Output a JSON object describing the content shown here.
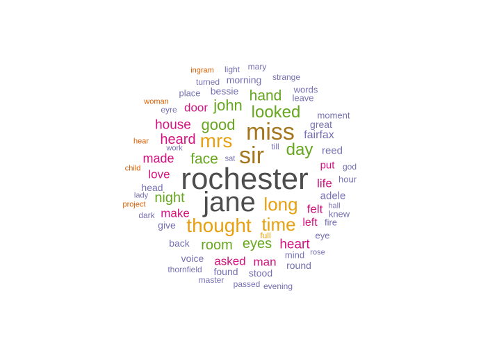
{
  "palette": {
    "gray": "#4d4d4d",
    "brown": "#a6761d",
    "gold": "#e6a011",
    "green": "#66a61e",
    "magenta": "#d4117f",
    "purple": "#7570b3",
    "orange": "#d95f02"
  },
  "words": [
    {
      "text": "rochester",
      "color": "gray"
    },
    {
      "text": "jane",
      "color": "gray"
    },
    {
      "text": "miss",
      "color": "brown"
    },
    {
      "text": "sir",
      "color": "brown"
    },
    {
      "text": "thought",
      "color": "gold"
    },
    {
      "text": "mrs",
      "color": "gold"
    },
    {
      "text": "long",
      "color": "gold"
    },
    {
      "text": "time",
      "color": "gold"
    },
    {
      "text": "looked",
      "color": "green"
    },
    {
      "text": "day",
      "color": "green"
    },
    {
      "text": "good",
      "color": "green"
    },
    {
      "text": "john",
      "color": "green"
    },
    {
      "text": "hand",
      "color": "green"
    },
    {
      "text": "face",
      "color": "green"
    },
    {
      "text": "night",
      "color": "green"
    },
    {
      "text": "room",
      "color": "green"
    },
    {
      "text": "eyes",
      "color": "green"
    },
    {
      "text": "heard",
      "color": "magenta"
    },
    {
      "text": "house",
      "color": "magenta"
    },
    {
      "text": "door",
      "color": "magenta"
    },
    {
      "text": "made",
      "color": "magenta"
    },
    {
      "text": "love",
      "color": "magenta"
    },
    {
      "text": "make",
      "color": "magenta"
    },
    {
      "text": "heart",
      "color": "magenta"
    },
    {
      "text": "asked",
      "color": "magenta"
    },
    {
      "text": "man",
      "color": "magenta"
    },
    {
      "text": "felt",
      "color": "magenta"
    },
    {
      "text": "left",
      "color": "magenta"
    },
    {
      "text": "life",
      "color": "magenta"
    },
    {
      "text": "put",
      "color": "magenta"
    },
    {
      "text": "fairfax",
      "color": "purple"
    },
    {
      "text": "adele",
      "color": "purple"
    },
    {
      "text": "reed",
      "color": "purple"
    },
    {
      "text": "great",
      "color": "purple"
    },
    {
      "text": "moment",
      "color": "purple"
    },
    {
      "text": "morning",
      "color": "purple"
    },
    {
      "text": "bessie",
      "color": "purple"
    },
    {
      "text": "words",
      "color": "purple"
    },
    {
      "text": "leave",
      "color": "purple"
    },
    {
      "text": "strange",
      "color": "purple"
    },
    {
      "text": "place",
      "color": "purple"
    },
    {
      "text": "turned",
      "color": "purple"
    },
    {
      "text": "light",
      "color": "purple"
    },
    {
      "text": "mary",
      "color": "purple"
    },
    {
      "text": "eyre",
      "color": "purple"
    },
    {
      "text": "work",
      "color": "purple"
    },
    {
      "text": "till",
      "color": "purple"
    },
    {
      "text": "sat",
      "color": "purple"
    },
    {
      "text": "head",
      "color": "purple"
    },
    {
      "text": "lady",
      "color": "purple"
    },
    {
      "text": "dark",
      "color": "purple"
    },
    {
      "text": "give",
      "color": "purple"
    },
    {
      "text": "back",
      "color": "purple"
    },
    {
      "text": "voice",
      "color": "purple"
    },
    {
      "text": "found",
      "color": "purple"
    },
    {
      "text": "stood",
      "color": "purple"
    },
    {
      "text": "round",
      "color": "purple"
    },
    {
      "text": "mind",
      "color": "purple"
    },
    {
      "text": "rose",
      "color": "purple"
    },
    {
      "text": "eye",
      "color": "purple"
    },
    {
      "text": "fire",
      "color": "purple"
    },
    {
      "text": "knew",
      "color": "purple"
    },
    {
      "text": "hall",
      "color": "purple"
    },
    {
      "text": "hour",
      "color": "purple"
    },
    {
      "text": "god",
      "color": "purple"
    },
    {
      "text": "thornfield",
      "color": "purple"
    },
    {
      "text": "master",
      "color": "purple"
    },
    {
      "text": "passed",
      "color": "purple"
    },
    {
      "text": "evening",
      "color": "purple"
    },
    {
      "text": "full",
      "color": "gold"
    },
    {
      "text": "ingram",
      "color": "orange"
    },
    {
      "text": "woman",
      "color": "orange"
    },
    {
      "text": "hear",
      "color": "orange"
    },
    {
      "text": "child",
      "color": "orange"
    },
    {
      "text": "project",
      "color": "orange"
    }
  ]
}
